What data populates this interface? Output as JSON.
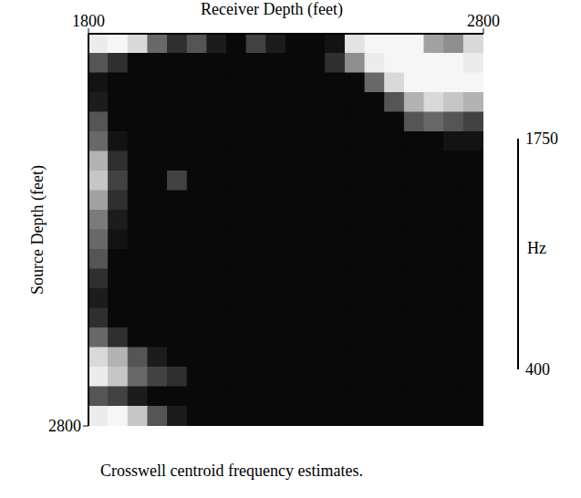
{
  "chart_data": {
    "type": "heatmap",
    "caption": "Crosswell centroid frequency estimates.",
    "x_label": "Receiver Depth (feet)",
    "y_label": "Source Depth (feet)",
    "x": [
      1825,
      1875,
      1925,
      1975,
      2025,
      2075,
      2125,
      2175,
      2225,
      2275,
      2325,
      2375,
      2425,
      2475,
      2525,
      2575,
      2625,
      2675,
      2725,
      2775
    ],
    "y": [
      1825,
      1875,
      1925,
      1975,
      2025,
      2075,
      2125,
      2175,
      2225,
      2275,
      2325,
      2375,
      2425,
      2475,
      2525,
      2575,
      2625,
      2675,
      2725,
      2775
    ],
    "xlim": [
      1800,
      2800
    ],
    "xticks": [
      1800,
      2800
    ],
    "ylim": [
      1800,
      2800
    ],
    "yticks": [
      2800
    ],
    "z": [
      [
        500,
        450,
        600,
        1200,
        1500,
        1300,
        1600,
        1700,
        1400,
        1600,
        1700,
        1700,
        1650,
        550,
        450,
        450,
        450,
        900,
        1000,
        600
      ],
      [
        1300,
        1500,
        1700,
        1700,
        1700,
        1700,
        1700,
        1700,
        1700,
        1700,
        1700,
        1700,
        1500,
        1000,
        500,
        450,
        450,
        450,
        450,
        500
      ],
      [
        1650,
        1700,
        1700,
        1700,
        1700,
        1700,
        1700,
        1700,
        1700,
        1700,
        1700,
        1700,
        1700,
        1700,
        1200,
        600,
        450,
        450,
        450,
        450
      ],
      [
        1600,
        1700,
        1700,
        1700,
        1700,
        1700,
        1700,
        1700,
        1700,
        1700,
        1700,
        1700,
        1700,
        1700,
        1700,
        1300,
        800,
        600,
        700,
        800
      ],
      [
        1300,
        1700,
        1700,
        1700,
        1700,
        1700,
        1700,
        1700,
        1700,
        1700,
        1700,
        1700,
        1700,
        1700,
        1700,
        1700,
        1300,
        1200,
        1300,
        1400
      ],
      [
        1200,
        1650,
        1700,
        1700,
        1700,
        1700,
        1700,
        1700,
        1700,
        1700,
        1700,
        1700,
        1700,
        1700,
        1700,
        1700,
        1700,
        1700,
        1650,
        1650
      ],
      [
        800,
        1500,
        1700,
        1700,
        1700,
        1700,
        1700,
        1700,
        1700,
        1700,
        1700,
        1700,
        1700,
        1700,
        1700,
        1700,
        1700,
        1700,
        1700,
        1700
      ],
      [
        700,
        1400,
        1700,
        1700,
        1400,
        1700,
        1700,
        1700,
        1700,
        1700,
        1700,
        1700,
        1700,
        1700,
        1700,
        1700,
        1700,
        1700,
        1700,
        1700
      ],
      [
        900,
        1500,
        1700,
        1700,
        1700,
        1700,
        1700,
        1700,
        1700,
        1700,
        1700,
        1700,
        1700,
        1700,
        1700,
        1700,
        1700,
        1700,
        1700,
        1700
      ],
      [
        1100,
        1600,
        1700,
        1700,
        1700,
        1700,
        1700,
        1700,
        1700,
        1700,
        1700,
        1700,
        1700,
        1700,
        1700,
        1700,
        1700,
        1700,
        1700,
        1700
      ],
      [
        1200,
        1650,
        1700,
        1700,
        1700,
        1700,
        1700,
        1700,
        1700,
        1700,
        1700,
        1700,
        1700,
        1700,
        1700,
        1700,
        1700,
        1700,
        1700,
        1700
      ],
      [
        1300,
        1700,
        1700,
        1700,
        1700,
        1700,
        1700,
        1700,
        1700,
        1700,
        1700,
        1700,
        1700,
        1700,
        1700,
        1700,
        1700,
        1700,
        1700,
        1700
      ],
      [
        1500,
        1700,
        1700,
        1700,
        1700,
        1700,
        1700,
        1700,
        1700,
        1700,
        1700,
        1700,
        1700,
        1700,
        1700,
        1700,
        1700,
        1700,
        1700,
        1700
      ],
      [
        1600,
        1700,
        1700,
        1700,
        1700,
        1700,
        1700,
        1700,
        1700,
        1700,
        1700,
        1700,
        1700,
        1700,
        1700,
        1700,
        1700,
        1700,
        1700,
        1700
      ],
      [
        1500,
        1700,
        1700,
        1700,
        1700,
        1700,
        1700,
        1700,
        1700,
        1700,
        1700,
        1700,
        1700,
        1700,
        1700,
        1700,
        1700,
        1700,
        1700,
        1700
      ],
      [
        1200,
        1500,
        1700,
        1700,
        1700,
        1700,
        1700,
        1700,
        1700,
        1700,
        1700,
        1700,
        1700,
        1700,
        1700,
        1700,
        1700,
        1700,
        1700,
        1700
      ],
      [
        600,
        800,
        1300,
        1600,
        1700,
        1700,
        1700,
        1700,
        1700,
        1700,
        1700,
        1700,
        1700,
        1700,
        1700,
        1700,
        1700,
        1700,
        1700,
        1700
      ],
      [
        500,
        700,
        1200,
        1400,
        1500,
        1700,
        1700,
        1700,
        1700,
        1700,
        1700,
        1700,
        1700,
        1700,
        1700,
        1700,
        1700,
        1700,
        1700,
        1700
      ],
      [
        1300,
        1400,
        1600,
        1700,
        1700,
        1700,
        1700,
        1700,
        1700,
        1700,
        1700,
        1700,
        1700,
        1700,
        1700,
        1700,
        1700,
        1700,
        1700,
        1700
      ],
      [
        500,
        450,
        700,
        1300,
        1600,
        1700,
        1700,
        1700,
        1700,
        1700,
        1700,
        1700,
        1700,
        1700,
        1700,
        1700,
        1700,
        1700,
        1700,
        1700
      ]
    ],
    "colorbar": {
      "range": [
        400,
        1750
      ],
      "ticks": [
        400,
        1750
      ],
      "label": "Hz"
    }
  }
}
